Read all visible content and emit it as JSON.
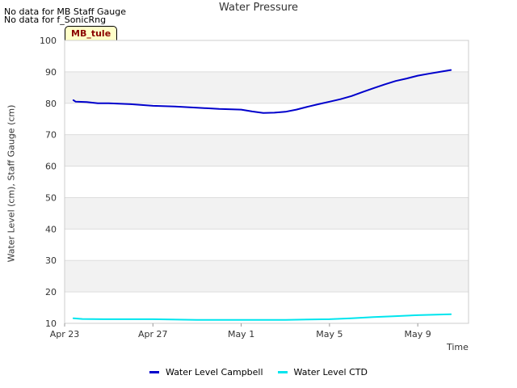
{
  "notices": [
    "No data for MB Staff Gauge",
    "No data for f_SonicRng"
  ],
  "site_tag": "MB_tule",
  "chart_data": {
    "type": "line",
    "title": "Water Pressure",
    "xlabel": "Time",
    "ylabel": "Water Level (cm), Staff Gauge (cm)",
    "ylim": [
      10,
      100
    ],
    "yticks": [
      10,
      20,
      30,
      40,
      50,
      60,
      70,
      80,
      90,
      100
    ],
    "xlim": [
      0,
      18.3
    ],
    "xticks": [
      {
        "x": 0,
        "label": "Apr 23"
      },
      {
        "x": 4,
        "label": "Apr 27"
      },
      {
        "x": 8,
        "label": "May 1"
      },
      {
        "x": 12,
        "label": "May 5"
      },
      {
        "x": 16,
        "label": "May 9"
      }
    ],
    "grid": true,
    "legend_position": "bottom",
    "series": [
      {
        "name": "Water Level Campbell",
        "color": "#0000cc",
        "x": [
          0.4,
          0.5,
          1,
          1.5,
          2,
          3,
          4,
          5,
          6,
          7,
          8,
          8.5,
          9,
          9.5,
          10,
          10.5,
          11,
          11.5,
          12,
          12.5,
          13,
          13.5,
          14,
          14.5,
          15,
          15.5,
          16,
          16.5,
          17,
          17.5
        ],
        "y": [
          81,
          80.5,
          80.4,
          80,
          80,
          79.7,
          79.2,
          79,
          78.6,
          78.2,
          78,
          77.4,
          76.9,
          77,
          77.3,
          78,
          78.9,
          79.7,
          80.5,
          81.3,
          82.3,
          83.6,
          84.8,
          86,
          87.1,
          87.9,
          88.8,
          89.4,
          90,
          90.6
        ]
      },
      {
        "name": "Water Level CTD",
        "color": "#00e5ee",
        "x": [
          0.4,
          0.8,
          2,
          4,
          6,
          8,
          10,
          11,
          12,
          13,
          14,
          15,
          16,
          17,
          17.5
        ],
        "y": [
          11.6,
          11.4,
          11.3,
          11.3,
          11.1,
          11.1,
          11.1,
          11.2,
          11.3,
          11.6,
          12,
          12.3,
          12.6,
          12.8,
          12.9
        ]
      }
    ]
  }
}
